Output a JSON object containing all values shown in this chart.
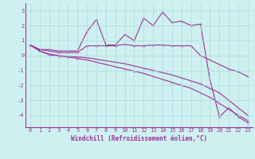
{
  "x": [
    0,
    1,
    2,
    3,
    4,
    5,
    6,
    7,
    8,
    9,
    10,
    11,
    12,
    13,
    14,
    15,
    16,
    17,
    18,
    19,
    20,
    21,
    22,
    23
  ],
  "line1": [
    0.7,
    0.4,
    0.4,
    0.3,
    0.3,
    0.3,
    1.6,
    2.4,
    0.7,
    0.7,
    1.4,
    1.0,
    2.5,
    2.0,
    2.9,
    2.2,
    2.3,
    2.0,
    2.1,
    -1.6,
    -4.1,
    -3.5,
    -4.1,
    -4.5
  ],
  "line2": [
    0.7,
    0.4,
    0.3,
    0.2,
    0.2,
    0.2,
    0.65,
    0.65,
    0.65,
    0.65,
    0.75,
    0.65,
    0.65,
    0.7,
    0.7,
    0.65,
    0.65,
    0.65,
    0.0,
    -0.3,
    -0.6,
    -0.9,
    -1.1,
    -1.4
  ],
  "line3": [
    0.7,
    0.3,
    0.1,
    0.0,
    -0.05,
    -0.1,
    -0.15,
    -0.25,
    -0.35,
    -0.45,
    -0.55,
    -0.7,
    -0.85,
    -1.0,
    -1.15,
    -1.3,
    -1.5,
    -1.7,
    -1.9,
    -2.2,
    -2.5,
    -3.0,
    -3.5,
    -4.0
  ],
  "line4": [
    0.7,
    0.3,
    0.05,
    -0.05,
    -0.1,
    -0.2,
    -0.3,
    -0.45,
    -0.6,
    -0.75,
    -0.9,
    -1.05,
    -1.2,
    -1.4,
    -1.6,
    -1.8,
    -2.0,
    -2.2,
    -2.5,
    -2.8,
    -3.2,
    -3.6,
    -4.0,
    -4.35
  ],
  "bg_color": "#cff0f0",
  "line_color": "#993399",
  "grid_color": "#aadddd",
  "xlabel": "Windchill (Refroidissement éolien,°C)",
  "ylim": [
    -4.8,
    3.5
  ],
  "xlim": [
    -0.5,
    23.5
  ],
  "yticks": [
    -4,
    -3,
    -2,
    -1,
    0,
    1,
    2,
    3
  ],
  "xticks": [
    0,
    1,
    2,
    3,
    4,
    5,
    6,
    7,
    8,
    9,
    10,
    11,
    12,
    13,
    14,
    15,
    16,
    17,
    18,
    19,
    20,
    21,
    22,
    23
  ],
  "xlabel_fontsize": 5.5,
  "tick_fontsize": 5.0,
  "linewidth": 0.8,
  "markersize": 2.5
}
